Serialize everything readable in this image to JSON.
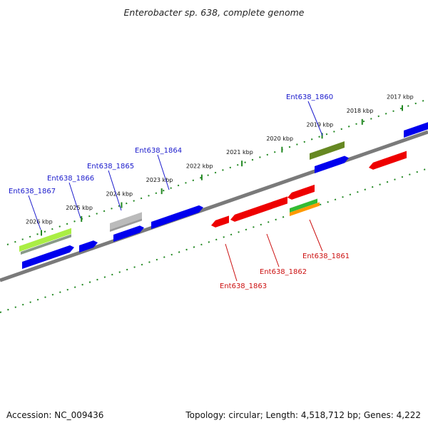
{
  "title": "Enterobacter sp. 638, complete genome",
  "footer": {
    "accession": "Accession: NC_009436",
    "summary": "Topology: circular; Length: 4,518,712 bp; Genes: 4,222"
  },
  "scale_ticks": [
    {
      "label": "2026 kbp",
      "kbp": 2026
    },
    {
      "label": "2025 kbp",
      "kbp": 2025
    },
    {
      "label": "2024 kbp",
      "kbp": 2024
    },
    {
      "label": "2023 kbp",
      "kbp": 2023
    },
    {
      "label": "2022 kbp",
      "kbp": 2022
    },
    {
      "label": "2021 kbp",
      "kbp": 2021
    },
    {
      "label": "2020 kbp",
      "kbp": 2020
    },
    {
      "label": "2019 kbp",
      "kbp": 2019
    },
    {
      "label": "2018 kbp",
      "kbp": 2018
    },
    {
      "label": "2017 kbp",
      "kbp": 2017
    }
  ],
  "gene_labels": [
    {
      "name": "Ent638_1867",
      "strand": "forward"
    },
    {
      "name": "Ent638_1866",
      "strand": "forward"
    },
    {
      "name": "Ent638_1865",
      "strand": "forward"
    },
    {
      "name": "Ent638_1864",
      "strand": "forward"
    },
    {
      "name": "Ent638_1860",
      "strand": "forward"
    },
    {
      "name": "Ent638_1863",
      "strand": "reverse"
    },
    {
      "name": "Ent638_1862",
      "strand": "reverse"
    },
    {
      "name": "Ent638_1861",
      "strand": "reverse"
    }
  ],
  "colors": {
    "forward_gene": "#0000ee",
    "reverse_gene": "#ee0000",
    "forward_label": "#1a1acc",
    "reverse_label": "#cc1111",
    "backbone": "#777777",
    "scale": "#228822",
    "feature_light_green": "#aaee44",
    "feature_olive": "#668822",
    "feature_gray": "#bbbbbb",
    "feature_green": "#33bb33",
    "feature_orange": "#ff9900"
  }
}
